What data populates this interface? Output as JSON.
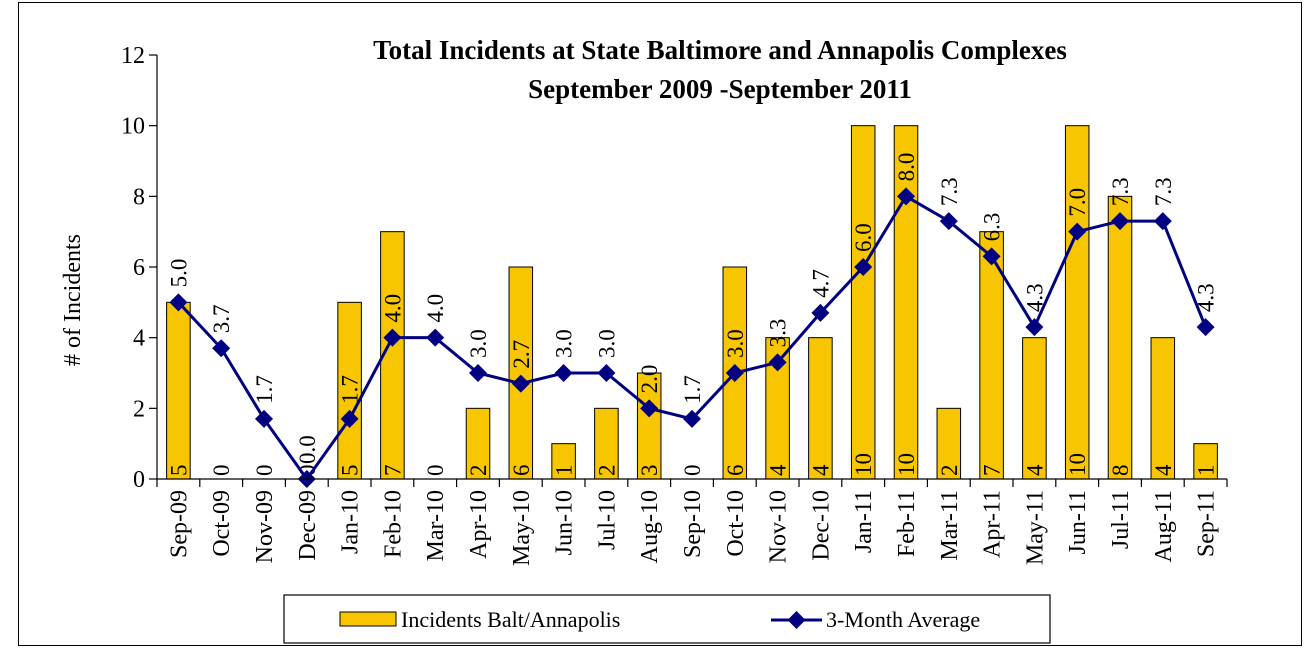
{
  "chart_data": {
    "type": "bar",
    "title": "Total Incidents at State Baltimore and Annapolis Complexes",
    "subtitle": "September 2009 -September 2011",
    "xlabel": "",
    "ylabel": "# of Incidents",
    "ylim": [
      0,
      12
    ],
    "yticks": [
      "0",
      "2",
      "4",
      "6",
      "8",
      "10",
      "12"
    ],
    "grid": false,
    "legend_position": "bottom",
    "categories": [
      "Sep-09",
      "Oct-09",
      "Nov-09",
      "Dec-09",
      "Jan-10",
      "Feb-10",
      "Mar-10",
      "Apr-10",
      "May-10",
      "Jun-10",
      "Jul-10",
      "Aug-10",
      "Sep-10",
      "Oct-10",
      "Nov-10",
      "Dec-10",
      "Jan-11",
      "Feb-11",
      "Mar-11",
      "Apr-11",
      "May-11",
      "Jun-11",
      "Jul-11",
      "Aug-11",
      "Sep-11"
    ],
    "series": [
      {
        "name": "Incidents Balt/Annapolis",
        "type": "bar",
        "color": "#f7c600",
        "values": [
          5,
          0,
          0,
          0,
          5,
          7,
          0,
          2,
          6,
          1,
          2,
          3,
          0,
          6,
          4,
          4,
          10,
          10,
          2,
          7,
          4,
          10,
          8,
          4,
          1
        ],
        "labels": [
          "5",
          "0",
          "0",
          "0",
          "5",
          "7",
          "0",
          "2",
          "6",
          "1",
          "2",
          "3",
          "0",
          "6",
          "4",
          "4",
          "10",
          "10",
          "2",
          "7",
          "4",
          "10",
          "8",
          "4",
          "1"
        ]
      },
      {
        "name": "3-Month Average",
        "type": "line",
        "color": "#000080",
        "values": [
          5.0,
          3.7,
          1.7,
          0.0,
          1.7,
          4.0,
          4.0,
          3.0,
          2.7,
          3.0,
          3.0,
          2.0,
          1.7,
          3.0,
          3.3,
          4.7,
          6.0,
          8.0,
          7.3,
          6.3,
          4.3,
          7.0,
          7.3,
          7.3,
          4.3
        ],
        "labels": [
          "5.0",
          "3.7",
          "1.7",
          "0.0",
          "1.7",
          "4.0",
          "4.0",
          "3.0",
          "2.7",
          "3.0",
          "3.0",
          "2.0",
          "1.7",
          "3.0",
          "3.3",
          "4.7",
          "6.0",
          "8.0",
          "7.3",
          "6.3",
          "4.3",
          "7.0",
          "7.3",
          "7.3",
          "4.3"
        ]
      }
    ]
  }
}
